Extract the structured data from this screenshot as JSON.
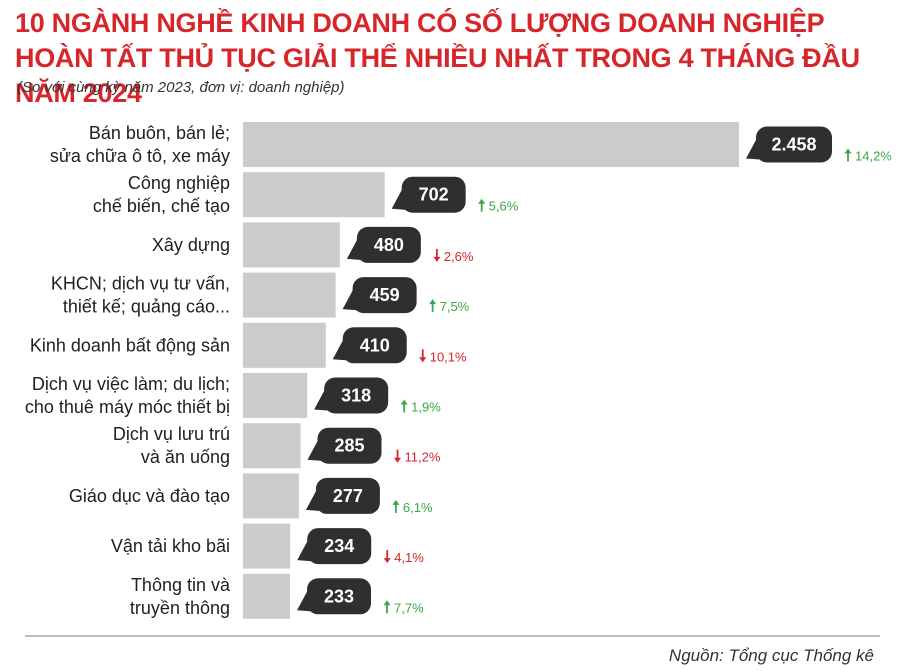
{
  "title": "10 NGÀNH NGHỀ KINH DOANH CÓ SỐ LƯỢNG DOANH NGHIỆP HOÀN TẤT THỦ TỤC GIẢI THỂ NHIỀU NHẤT TRONG 4 THÁNG ĐẦU NĂM 2024",
  "subtitle": "(So với cùng kỳ năm 2023, đơn vị: doanh nghiệp)",
  "source": "Nguồn: Tổng cục Thống kê",
  "colors": {
    "title": "#d7262b",
    "bar": "#cbcbcb",
    "bubble": "#2f2f2f",
    "increase": "#3aa846",
    "decrease": "#d7262b"
  },
  "chart_data": {
    "type": "bar",
    "orientation": "horizontal",
    "categories": [
      [
        "Bán buôn, bán lẻ;",
        "sửa chữa ô tô, xe máy"
      ],
      [
        "Công nghiệp",
        "chế biến, chế tạo"
      ],
      [
        "Xây dựng"
      ],
      [
        "KHCN; dịch vụ tư vấn,",
        "thiết kế; quảng cáo..."
      ],
      [
        "Kinh doanh bất động sản"
      ],
      [
        "Dịch vụ việc làm; du lịch;",
        "cho thuê máy móc thiết bị"
      ],
      [
        "Dịch vụ lưu trú",
        "và ăn uống"
      ],
      [
        "Giáo dục và đào tạo"
      ],
      [
        "Vận tải kho bãi"
      ],
      [
        "Thông tin và",
        "truyền thông"
      ]
    ],
    "values": [
      2458,
      702,
      480,
      459,
      410,
      318,
      285,
      277,
      234,
      233
    ],
    "value_labels": [
      "2.458",
      "702",
      "480",
      "459",
      "410",
      "318",
      "285",
      "277",
      "234",
      "233"
    ],
    "changes": [
      {
        "dir": "up",
        "label": "14,2%"
      },
      {
        "dir": "up",
        "label": "5,6%"
      },
      {
        "dir": "down",
        "label": "2,6%"
      },
      {
        "dir": "up",
        "label": "7,5%"
      },
      {
        "dir": "down",
        "label": "10,1%"
      },
      {
        "dir": "up",
        "label": "1,9%"
      },
      {
        "dir": "down",
        "label": "11,2%"
      },
      {
        "dir": "up",
        "label": "6,1%"
      },
      {
        "dir": "down",
        "label": "4,1%"
      },
      {
        "dir": "up",
        "label": "7,7%"
      }
    ],
    "xlim": [
      0,
      2458
    ],
    "grid": false,
    "legend": "none"
  }
}
